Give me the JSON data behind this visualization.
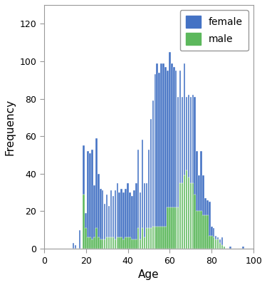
{
  "title": "",
  "xlabel": "Age",
  "ylabel": "Frequency",
  "xlim": [
    0,
    100
  ],
  "ylim": [
    0,
    130
  ],
  "yticks": [
    0,
    20,
    40,
    60,
    80,
    100,
    120
  ],
  "xticks": [
    0,
    20,
    40,
    60,
    80,
    100
  ],
  "female_color": "#4472C4",
  "male_color": "#5CB85C",
  "bar_width": 0.85,
  "background_color": "#ffffff",
  "ages": [
    14,
    15,
    16,
    17,
    18,
    19,
    20,
    21,
    22,
    23,
    24,
    25,
    26,
    27,
    28,
    29,
    30,
    31,
    32,
    33,
    34,
    35,
    36,
    37,
    38,
    39,
    40,
    41,
    42,
    43,
    44,
    45,
    46,
    47,
    48,
    49,
    50,
    51,
    52,
    53,
    54,
    55,
    56,
    57,
    58,
    59,
    60,
    61,
    62,
    63,
    64,
    65,
    66,
    67,
    68,
    69,
    70,
    71,
    72,
    73,
    74,
    75,
    76,
    77,
    78,
    79,
    80,
    81,
    82,
    83,
    84,
    85,
    86,
    87,
    88,
    89,
    90,
    92,
    95
  ],
  "female": [
    3,
    2,
    0,
    10,
    0,
    55,
    19,
    52,
    51,
    53,
    34,
    59,
    40,
    32,
    31,
    24,
    29,
    23,
    31,
    28,
    31,
    35,
    30,
    32,
    30,
    32,
    35,
    30,
    28,
    31,
    35,
    53,
    30,
    58,
    35,
    35,
    53,
    69,
    79,
    93,
    99,
    94,
    99,
    99,
    97,
    95,
    105,
    99,
    97,
    95,
    81,
    95,
    81,
    99,
    81,
    82,
    81,
    82,
    81,
    52,
    39,
    52,
    39,
    27,
    26,
    25,
    12,
    11,
    7,
    6,
    5,
    6,
    1,
    0,
    0,
    1,
    0,
    0,
    1
  ],
  "male": [
    0,
    0,
    0,
    0,
    0,
    29,
    11,
    6,
    6,
    5,
    6,
    11,
    6,
    5,
    5,
    5,
    6,
    6,
    6,
    6,
    5,
    6,
    6,
    6,
    5,
    6,
    6,
    6,
    5,
    5,
    5,
    11,
    5,
    11,
    6,
    11,
    11,
    11,
    12,
    12,
    12,
    12,
    12,
    12,
    12,
    22,
    22,
    22,
    22,
    22,
    22,
    35,
    35,
    39,
    42,
    38,
    35,
    35,
    29,
    20,
    20,
    20,
    18,
    18,
    18,
    7,
    7,
    6,
    5,
    5,
    3,
    2,
    1,
    0,
    0,
    0,
    0,
    0,
    0
  ]
}
